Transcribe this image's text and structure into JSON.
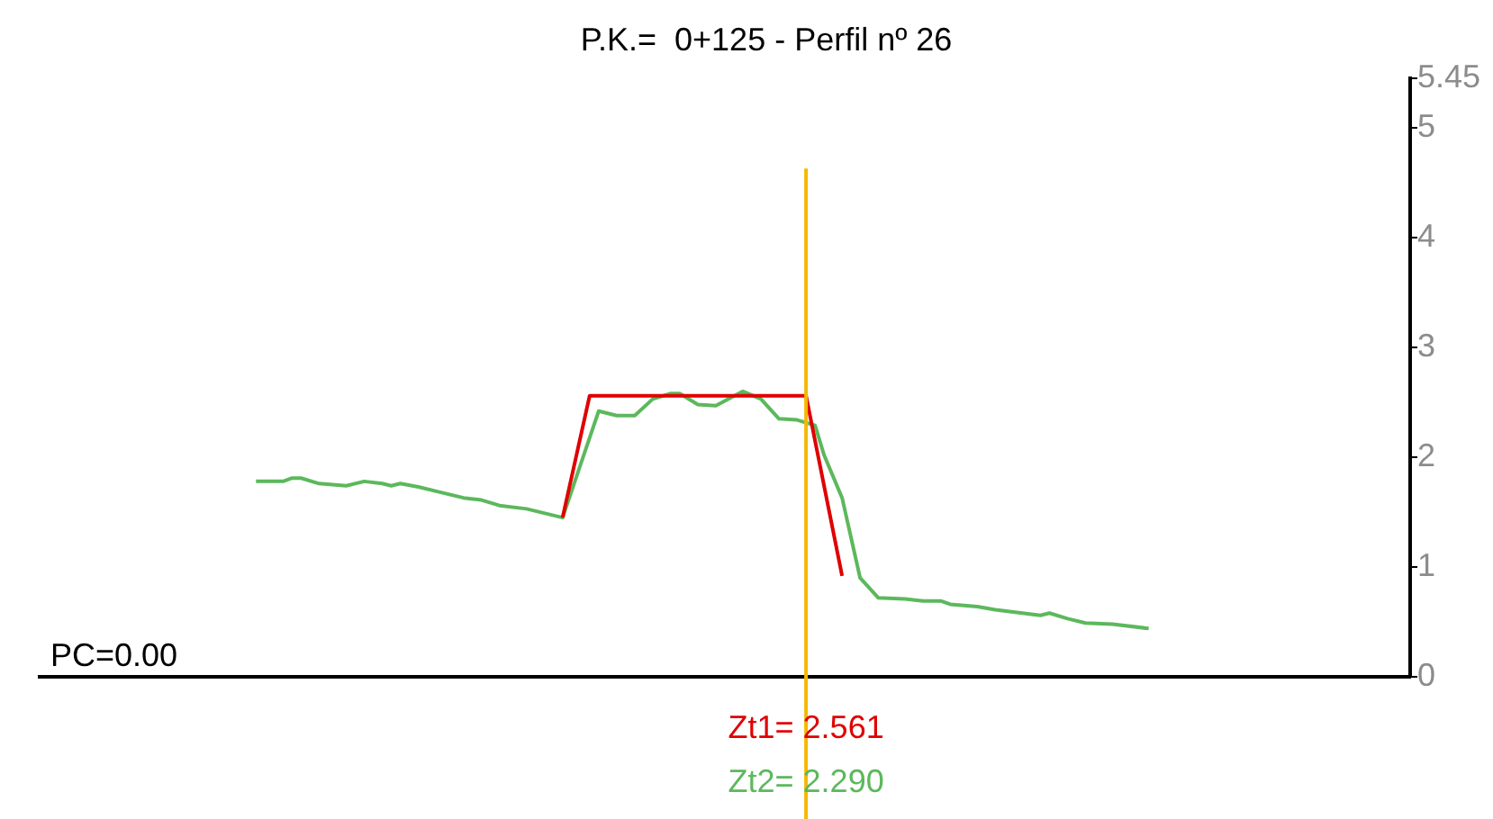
{
  "chart_data": {
    "type": "line",
    "title": "P.K.=  0+125 - Perfil nº 26",
    "categories": [
      null,
      null,
      null,
      null,
      null,
      null,
      null,
      null,
      null,
      null,
      null,
      null,
      null,
      null,
      null,
      null,
      null,
      null,
      null,
      null,
      null,
      null,
      null,
      null,
      null,
      null,
      null,
      null,
      null,
      null,
      null,
      null,
      null,
      null,
      null,
      null,
      null,
      null,
      null,
      null,
      null,
      null,
      null,
      null,
      null,
      null,
      null,
      null,
      null,
      null,
      null,
      null,
      null,
      null,
      null,
      null,
      null,
      null,
      null,
      null,
      null,
      null,
      null,
      null,
      null,
      null,
      null,
      null,
      null,
      null,
      null,
      null,
      null,
      null,
      null,
      null,
      null,
      null,
      null,
      null,
      null,
      null,
      null,
      null,
      null,
      null,
      null,
      null,
      null,
      null,
      null,
      null,
      null,
      null,
      null,
      null,
      null,
      null,
      null,
      null,
      null,
      null,
      null,
      null,
      null,
      null,
      null,
      null,
      null,
      null,
      null,
      null,
      null,
      null,
      null,
      null,
      null,
      null,
      null,
      null,
      null,
      null,
      null,
      null,
      null,
      null,
      null,
      null,
      null,
      null,
      null,
      null,
      null,
      null,
      null,
      null,
      null,
      null,
      null,
      null,
      null,
      null,
      null,
      null,
      null,
      null,
      null,
      null,
      null,
      null,
      null,
      null,
      null
    ],
    "series": [
      {
        "color": "#e00000",
        "values": [
          null,
          null,
          null,
          null,
          null,
          null,
          null,
          null,
          null,
          null,
          null,
          null,
          null,
          null,
          null,
          null,
          null,
          null,
          null,
          null,
          null,
          null,
          null,
          null,
          null,
          null,
          null,
          null,
          null,
          null,
          null,
          null,
          null,
          null,
          null,
          null,
          null,
          null,
          null,
          null,
          null,
          null,
          null,
          null,
          null,
          null,
          null,
          null,
          null,
          null,
          null,
          null,
          null,
          null,
          null,
          null,
          null,
          null,
          1.45,
          null,
          null,
          2.56,
          null,
          null,
          null,
          null,
          null,
          null,
          null,
          null,
          null,
          null,
          null,
          null,
          null,
          null,
          null,
          null,
          null,
          null,
          null,
          null,
          null,
          null,
          null,
          2.56,
          null,
          null,
          null,
          0.92,
          null,
          null,
          null,
          null,
          null,
          null,
          null,
          null,
          null,
          null,
          null,
          null,
          null,
          null,
          null,
          null,
          null,
          null,
          null,
          null,
          null,
          null,
          null,
          null,
          null,
          null,
          null,
          null,
          null,
          null,
          null,
          null,
          null,
          null,
          null,
          null,
          null,
          null,
          null,
          null,
          null,
          null,
          null,
          null,
          null,
          null,
          null,
          null,
          null,
          null,
          null,
          null,
          null,
          null,
          null,
          null,
          null,
          null,
          null,
          null,
          null,
          null,
          null
        ]
      },
      {
        "color": "#5cb85c",
        "values": [
          null,
          null,
          null,
          null,
          null,
          null,
          null,
          null,
          null,
          null,
          null,
          null,
          null,
          null,
          null,
          null,
          null,
          null,
          null,
          null,
          null,
          null,
          null,
          null,
          1.78,
          null,
          null,
          1.78,
          1.81,
          1.81,
          null,
          1.76,
          null,
          null,
          1.74,
          null,
          1.78,
          null,
          1.76,
          1.74,
          1.76,
          null,
          1.73,
          null,
          1.69,
          null,
          null,
          1.63,
          null,
          1.61,
          null,
          1.56,
          null,
          null,
          1.53,
          null,
          null,
          null,
          1.45,
          null,
          null,
          null,
          2.42,
          null,
          2.38,
          null,
          2.38,
          null,
          2.53,
          null,
          2.58,
          2.58,
          null,
          2.48,
          null,
          2.47,
          null,
          null,
          2.6,
          null,
          2.53,
          null,
          2.35,
          null,
          2.34,
          null,
          2.29,
          2.02,
          null,
          1.63,
          null,
          0.9,
          null,
          0.72,
          null,
          null,
          0.71,
          null,
          0.69,
          null,
          0.69,
          0.66,
          null,
          null,
          0.64,
          null,
          0.61,
          null,
          null,
          0.58,
          null,
          0.56,
          0.58,
          null,
          0.53,
          null,
          0.49,
          null,
          null,
          0.48,
          null,
          null,
          null,
          0.44,
          null,
          null,
          null,
          null,
          null,
          null,
          null,
          null,
          null,
          null,
          null,
          null,
          null,
          null,
          null,
          null,
          null,
          null,
          null,
          null,
          null,
          null,
          null,
          null,
          null,
          null,
          null,
          null,
          null
        ]
      }
    ],
    "ylim": [
      0,
      5.45
    ],
    "yticks": [
      0,
      1,
      2,
      3,
      4,
      5,
      5.45
    ],
    "tick_labels": "y",
    "legend": false,
    "annotations": [
      "PC=0.00",
      "Zt1= 2.561",
      "Zt2= 2.290"
    ]
  }
}
